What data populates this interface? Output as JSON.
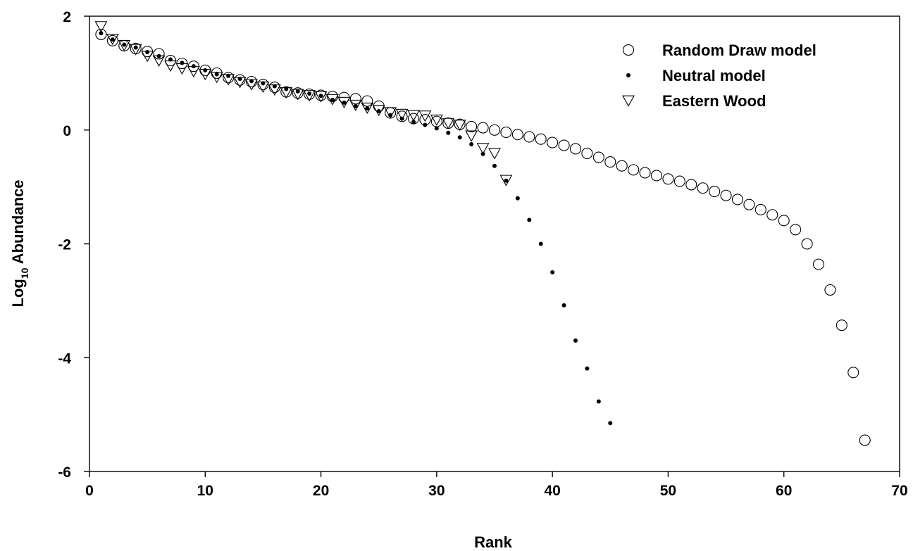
{
  "chart_data": {
    "type": "scatter",
    "xlabel": "Rank",
    "ylabel_main": "Log",
    "ylabel_sub": "10",
    "ylabel_rest": " Abundance",
    "xlim": [
      0,
      70
    ],
    "ylim": [
      -6,
      2
    ],
    "x_ticks": [
      0,
      10,
      20,
      30,
      40,
      50,
      60,
      70
    ],
    "y_ticks": [
      -6,
      -4,
      -2,
      0,
      2
    ],
    "x_tick_labels": [
      "0",
      "10",
      "20",
      "30",
      "40",
      "50",
      "60",
      "70"
    ],
    "y_tick_labels": [
      "-6",
      "-4",
      "-2",
      "0",
      "2"
    ],
    "legend_position": "top-right",
    "grid": false,
    "series": [
      {
        "name": "Random Draw model",
        "marker": "open-circle",
        "x": [
          1,
          2,
          3,
          4,
          5,
          6,
          7,
          8,
          9,
          10,
          11,
          12,
          13,
          14,
          15,
          16,
          17,
          18,
          19,
          20,
          21,
          22,
          23,
          24,
          25,
          26,
          27,
          28,
          29,
          30,
          31,
          32,
          33,
          34,
          35,
          36,
          37,
          38,
          39,
          40,
          41,
          42,
          43,
          44,
          45,
          46,
          47,
          48,
          49,
          50,
          51,
          52,
          53,
          54,
          55,
          56,
          57,
          58,
          59,
          60,
          61,
          62,
          63,
          64,
          65,
          66,
          67
        ],
        "y": [
          1.68,
          1.57,
          1.48,
          1.43,
          1.38,
          1.34,
          1.22,
          1.17,
          1.12,
          1.05,
          1.0,
          0.92,
          0.88,
          0.85,
          0.8,
          0.75,
          0.67,
          0.65,
          0.63,
          0.61,
          0.59,
          0.57,
          0.55,
          0.51,
          0.42,
          0.3,
          0.24,
          0.2,
          0.18,
          0.15,
          0.12,
          0.1,
          0.06,
          0.04,
          0.0,
          -0.04,
          -0.08,
          -0.12,
          -0.16,
          -0.22,
          -0.27,
          -0.33,
          -0.41,
          -0.48,
          -0.56,
          -0.63,
          -0.7,
          -0.75,
          -0.8,
          -0.86,
          -0.9,
          -0.96,
          -1.02,
          -1.08,
          -1.15,
          -1.22,
          -1.31,
          -1.4,
          -1.49,
          -1.59,
          -1.75,
          -2.0,
          -2.36,
          -2.81,
          -3.43,
          -4.26,
          -5.45
        ]
      },
      {
        "name": "Neutral model",
        "marker": "dot",
        "x": [
          1,
          2,
          3,
          4,
          5,
          6,
          7,
          8,
          9,
          10,
          11,
          12,
          13,
          14,
          15,
          16,
          17,
          18,
          19,
          20,
          21,
          22,
          23,
          24,
          25,
          26,
          27,
          28,
          29,
          30,
          31,
          32,
          33,
          34,
          35,
          36,
          37,
          38,
          39,
          40,
          41,
          42,
          43,
          44,
          45
        ],
        "y": [
          1.7,
          1.59,
          1.5,
          1.45,
          1.37,
          1.3,
          1.24,
          1.18,
          1.12,
          1.05,
          0.98,
          0.95,
          0.9,
          0.86,
          0.82,
          0.77,
          0.72,
          0.68,
          0.64,
          0.6,
          0.53,
          0.48,
          0.42,
          0.38,
          0.33,
          0.26,
          0.2,
          0.14,
          0.09,
          0.03,
          -0.05,
          -0.13,
          -0.25,
          -0.42,
          -0.63,
          -0.89,
          -1.2,
          -1.58,
          -2.0,
          -2.5,
          -3.08,
          -3.7,
          -4.19,
          -4.77,
          -5.15
        ]
      },
      {
        "name": "Eastern Wood",
        "marker": "open-triangle-down",
        "x": [
          1,
          2,
          3,
          4,
          5,
          6,
          7,
          8,
          9,
          10,
          11,
          12,
          13,
          14,
          15,
          16,
          17,
          18,
          19,
          20,
          21,
          22,
          23,
          24,
          25,
          26,
          27,
          28,
          29,
          30,
          31,
          32,
          33,
          34,
          35,
          36
        ],
        "y": [
          1.82,
          1.6,
          1.49,
          1.42,
          1.3,
          1.22,
          1.13,
          1.08,
          1.03,
          0.98,
          0.93,
          0.89,
          0.84,
          0.8,
          0.76,
          0.71,
          0.66,
          0.63,
          0.61,
          0.59,
          0.54,
          0.49,
          0.44,
          0.39,
          0.35,
          0.31,
          0.28,
          0.26,
          0.25,
          0.18,
          0.12,
          0.09,
          -0.1,
          -0.32,
          -0.41,
          -0.88
        ]
      }
    ]
  }
}
